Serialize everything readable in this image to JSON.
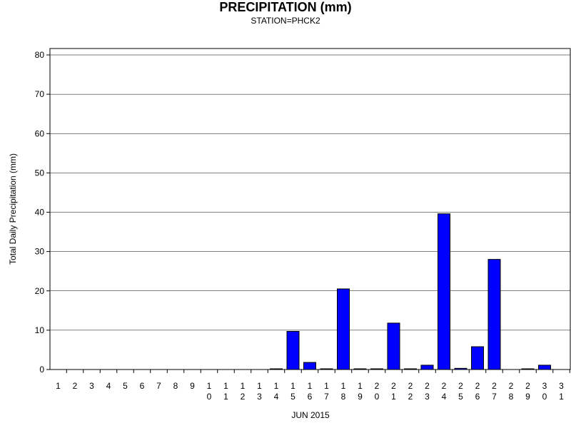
{
  "chart_data": {
    "type": "bar",
    "title": "PRECIPITATION (mm)",
    "subtitle": "STATION=PHCK2",
    "xlabel": "JUN 2015",
    "ylabel": "Total Daily Precipitation (mm)",
    "ylim": [
      0,
      80
    ],
    "yticks": [
      0,
      10,
      20,
      30,
      40,
      50,
      60,
      70,
      80
    ],
    "grid": true,
    "bar_color": "#0000ff",
    "categories": [
      "1",
      "2",
      "3",
      "4",
      "5",
      "6",
      "7",
      "8",
      "9",
      "10",
      "11",
      "12",
      "13",
      "14",
      "15",
      "16",
      "17",
      "18",
      "19",
      "20",
      "21",
      "22",
      "23",
      "24",
      "25",
      "26",
      "27",
      "28",
      "29",
      "30",
      "31"
    ],
    "values": [
      0,
      0,
      0,
      0,
      0,
      0,
      0,
      0,
      0,
      0,
      0,
      0,
      0,
      0.1,
      9.7,
      1.8,
      0.1,
      20.5,
      0.1,
      0.1,
      11.8,
      0.1,
      1.1,
      39.6,
      0.3,
      5.8,
      28.0,
      0,
      0.1,
      1.1,
      0
    ]
  }
}
